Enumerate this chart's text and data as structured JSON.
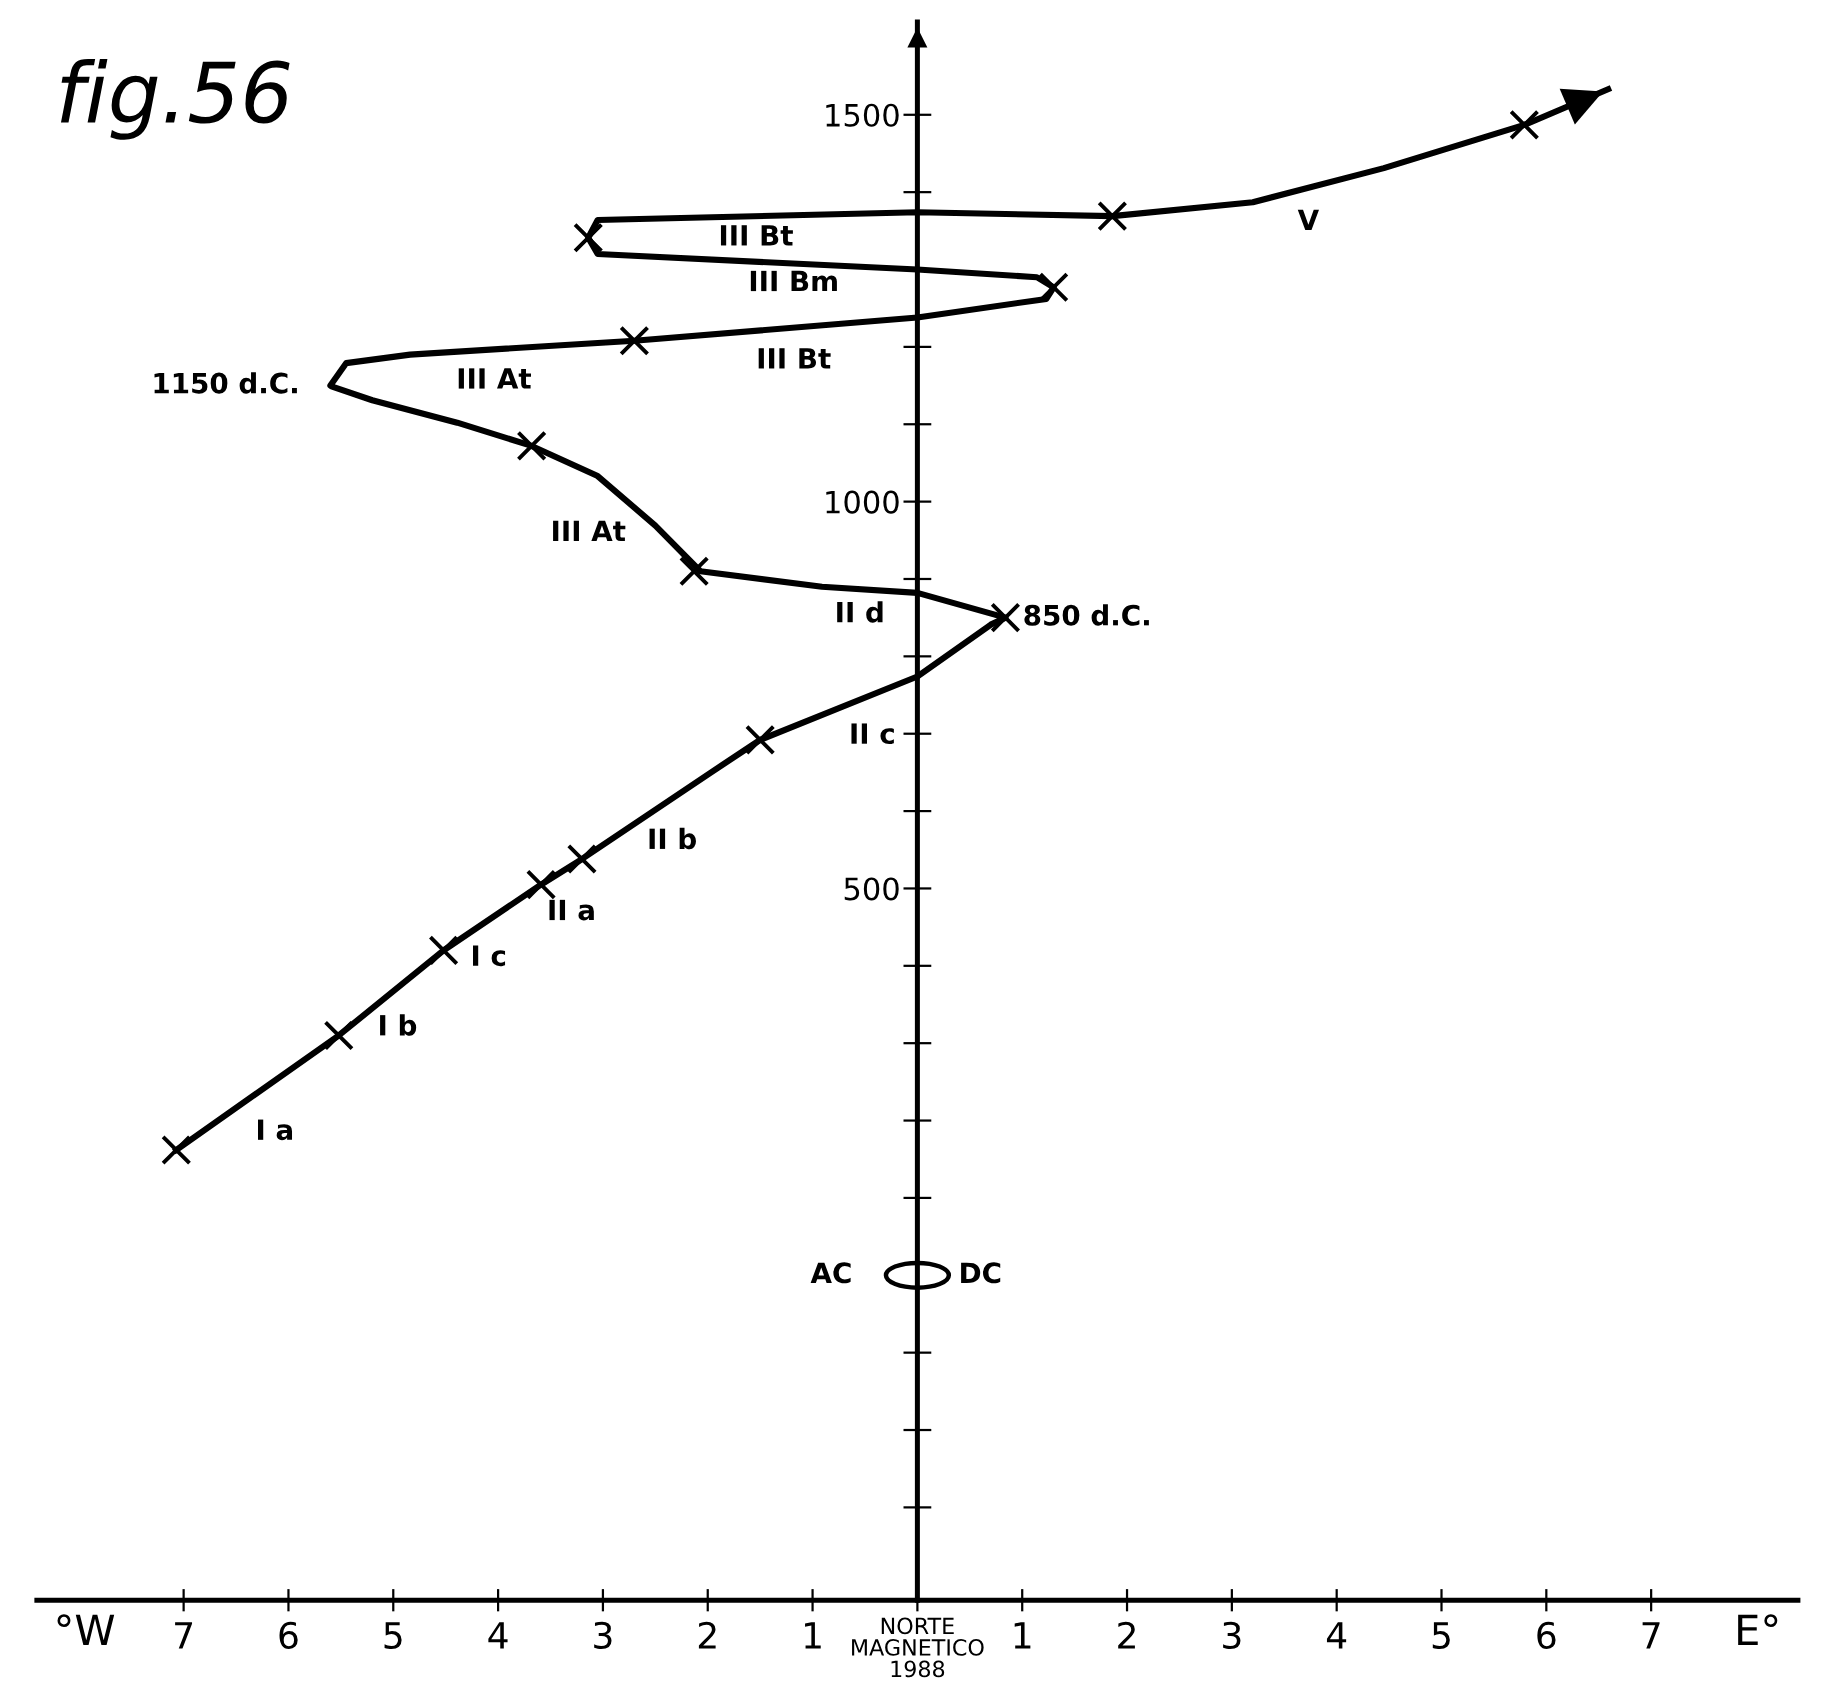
{
  "chart_data": {
    "type": "line",
    "title": "fig.56",
    "xlabel": "NORTE\nMAGNETICO\n1988",
    "series": [
      {
        "color": "#000000",
        "x": [
          -7.07,
          -5.52,
          -4.52,
          -3.59,
          -3.2,
          -1.98,
          -1.5,
          0,
          0.7,
          0.84,
          0,
          -0.91,
          -2.07,
          -2.5,
          -3.05,
          -3.68,
          -4.39,
          -5.2,
          -5.59,
          -5.6,
          -5.45,
          -4.84,
          -2.7,
          0,
          1.23,
          1.3,
          1.14,
          0,
          -3.05,
          -3.14,
          -3.05,
          0,
          1.86,
          3.2,
          4.45,
          5.79,
          6.59
        ],
        "values": [
          162,
          310,
          420,
          505,
          538,
          649,
          692,
          774,
          841,
          850,
          882,
          890,
          910,
          969,
          1033,
          1072,
          1102,
          1131,
          1149,
          1150,
          1179,
          1190,
          1208,
          1238,
          1262,
          1277,
          1290,
          1300,
          1320,
          1341,
          1364,
          1374,
          1369,
          1387,
          1431,
          1487,
          1533
        ]
      },
      {
        "type": "scatter",
        "color": "#000000",
        "marker": "cross",
        "x": [
          -7.07,
          -5.52,
          -4.52,
          -3.59,
          -3.2,
          -1.5,
          0.84,
          -2.13,
          -3.68,
          -2.7,
          1.3,
          -3.14,
          1.86,
          5.79
        ],
        "values": [
          162,
          310,
          420,
          505,
          538,
          692,
          850,
          910,
          1072,
          1208,
          1277,
          1341,
          1369,
          1487
        ]
      }
    ],
    "xlim": [
      -8.4,
      8.4
    ],
    "xticks": [
      {
        "value": -7,
        "label": "7"
      },
      {
        "value": -6,
        "label": "6"
      },
      {
        "value": -5,
        "label": "5"
      },
      {
        "value": -4,
        "label": "4"
      },
      {
        "value": -3,
        "label": "3"
      },
      {
        "value": -2,
        "label": "2"
      },
      {
        "value": -1,
        "label": "1"
      },
      {
        "value": 0,
        "label": null
      },
      {
        "value": 1,
        "label": "1"
      },
      {
        "value": 2,
        "label": "2"
      },
      {
        "value": 3,
        "label": "3"
      },
      {
        "value": 4,
        "label": "4"
      },
      {
        "value": 5,
        "label": "5"
      },
      {
        "value": 6,
        "label": "6"
      },
      {
        "value": 7,
        "label": "7"
      }
    ],
    "ylim": [
      -420,
      1620
    ],
    "yticks": [
      {
        "value": -300,
        "label": null
      },
      {
        "value": -200,
        "label": null
      },
      {
        "value": -100,
        "label": null
      },
      {
        "value": 100,
        "label": null
      },
      {
        "value": 200,
        "label": null
      },
      {
        "value": 300,
        "label": null
      },
      {
        "value": 400,
        "label": null
      },
      500,
      {
        "value": 600,
        "label": null
      },
      {
        "value": 700,
        "label": null
      },
      {
        "value": 800,
        "label": null
      },
      {
        "value": 900,
        "label": null
      },
      1000,
      {
        "value": 1100,
        "label": null
      },
      {
        "value": 1200,
        "label": null
      },
      {
        "value": 1300,
        "label": null
      },
      {
        "value": 1400,
        "label": null
      },
      1500
    ],
    "grid": false,
    "annotations": [
      "°W",
      "E°",
      "III Bt",
      "III Bm",
      "III Bt",
      "III At",
      "III At",
      "II d",
      "II c",
      "II b",
      "II a",
      "I c",
      "I b",
      "I a",
      "V",
      "850 d.C.",
      "1150 d.C.",
      "AC",
      "DC"
    ]
  }
}
